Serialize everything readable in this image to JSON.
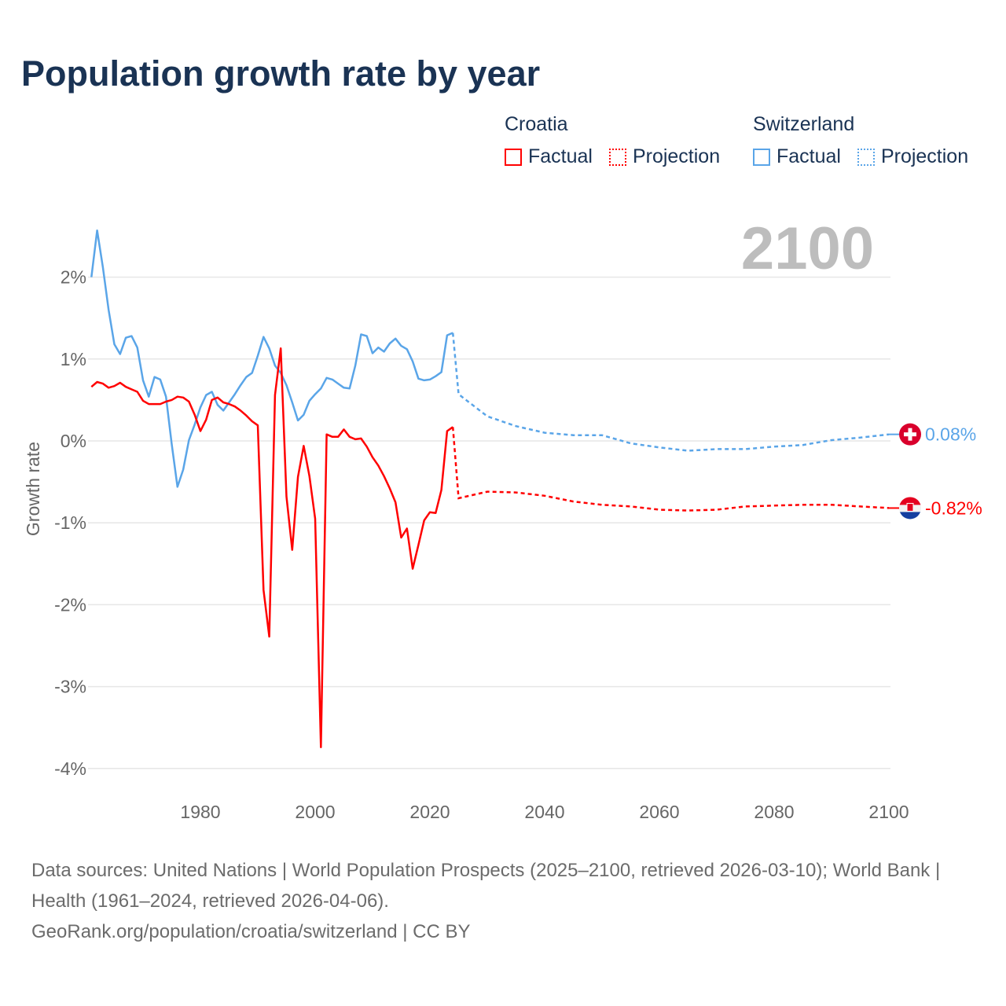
{
  "title": "Population growth rate by year",
  "legend": {
    "groups": [
      {
        "name": "Croatia",
        "color": "#ff0000",
        "factual": "Factual",
        "projection": "Projection"
      },
      {
        "name": "Switzerland",
        "color": "#5aa5e8",
        "factual": "Factual",
        "projection": "Projection"
      }
    ]
  },
  "footer": {
    "sources": "Data sources: United Nations | World Population Prospects (2025–2100, retrieved 2026-03-10); World Bank | Health (1961–2024, retrieved 2026-04-06).",
    "credit": "GeoRank.org/population/croatia/switzerland | CC BY"
  },
  "chart_data": {
    "type": "line",
    "title": "Population growth rate by year",
    "ylabel": "Growth rate",
    "xlabel": "",
    "year_watermark": "2100",
    "xlim": [
      1961,
      2100
    ],
    "ylim": [
      -4.3,
      2.7
    ],
    "x_ticks": [
      1980,
      2000,
      2020,
      2040,
      2060,
      2080,
      2100
    ],
    "y_ticks": [
      {
        "v": 2,
        "label": "2%"
      },
      {
        "v": 1,
        "label": "1%"
      },
      {
        "v": 0,
        "label": "0%"
      },
      {
        "v": -1,
        "label": "-1%"
      },
      {
        "v": -2,
        "label": "-2%"
      },
      {
        "v": -3,
        "label": "-3%"
      },
      {
        "v": -4,
        "label": "-4%"
      }
    ],
    "grid": true,
    "series": [
      {
        "name": "Switzerland",
        "color": "#5aa5e8",
        "end_label": "0.08%",
        "factual_start": 1961,
        "factual": [
          2.0,
          2.57,
          2.12,
          1.6,
          1.18,
          1.06,
          1.26,
          1.28,
          1.14,
          0.74,
          0.54,
          0.78,
          0.75,
          0.54,
          -0.04,
          -0.56,
          -0.35,
          0.01,
          0.2,
          0.41,
          0.56,
          0.6,
          0.44,
          0.37,
          0.47,
          0.57,
          0.68,
          0.78,
          0.83,
          1.04,
          1.27,
          1.13,
          0.92,
          0.83,
          0.68,
          0.47,
          0.25,
          0.32,
          0.49,
          0.57,
          0.64,
          0.77,
          0.75,
          0.7,
          0.65,
          0.64,
          0.92,
          1.3,
          1.28,
          1.07,
          1.14,
          1.09,
          1.19,
          1.25,
          1.16,
          1.12,
          0.97,
          0.76,
          0.74,
          0.75,
          0.79,
          0.84,
          1.29,
          1.32
        ],
        "projection": [
          [
            2024,
            1.32
          ],
          [
            2025,
            0.57
          ],
          [
            2030,
            0.3
          ],
          [
            2035,
            0.18
          ],
          [
            2040,
            0.1
          ],
          [
            2045,
            0.07
          ],
          [
            2050,
            0.07
          ],
          [
            2055,
            -0.03
          ],
          [
            2060,
            -0.08
          ],
          [
            2065,
            -0.12
          ],
          [
            2070,
            -0.1
          ],
          [
            2075,
            -0.1
          ],
          [
            2080,
            -0.07
          ],
          [
            2085,
            -0.05
          ],
          [
            2090,
            0.01
          ],
          [
            2095,
            0.04
          ],
          [
            2100,
            0.08
          ]
        ]
      },
      {
        "name": "Croatia",
        "color": "#ff0000",
        "end_label": "-0.82%",
        "factual_start": 1961,
        "factual": [
          0.66,
          0.72,
          0.7,
          0.65,
          0.67,
          0.71,
          0.66,
          0.63,
          0.6,
          0.49,
          0.45,
          0.45,
          0.45,
          0.48,
          0.5,
          0.54,
          0.53,
          0.48,
          0.32,
          0.12,
          0.26,
          0.5,
          0.53,
          0.47,
          0.45,
          0.42,
          0.37,
          0.31,
          0.24,
          0.19,
          -1.82,
          -2.39,
          0.56,
          1.13,
          -0.68,
          -1.33,
          -0.44,
          -0.06,
          -0.43,
          -0.95,
          -3.74,
          0.08,
          0.05,
          0.05,
          0.14,
          0.05,
          0.02,
          0.03,
          -0.07,
          -0.2,
          -0.3,
          -0.43,
          -0.58,
          -0.75,
          -1.18,
          -1.07,
          -1.56,
          -1.27,
          -0.97,
          -0.87,
          -0.88,
          -0.6,
          0.12,
          0.17
        ],
        "projection": [
          [
            2024,
            0.17
          ],
          [
            2025,
            -0.7
          ],
          [
            2030,
            -0.62
          ],
          [
            2035,
            -0.63
          ],
          [
            2040,
            -0.67
          ],
          [
            2045,
            -0.74
          ],
          [
            2050,
            -0.78
          ],
          [
            2055,
            -0.8
          ],
          [
            2060,
            -0.84
          ],
          [
            2065,
            -0.85
          ],
          [
            2070,
            -0.84
          ],
          [
            2075,
            -0.8
          ],
          [
            2080,
            -0.79
          ],
          [
            2085,
            -0.78
          ],
          [
            2090,
            -0.78
          ],
          [
            2095,
            -0.8
          ],
          [
            2100,
            -0.82
          ]
        ]
      }
    ]
  }
}
